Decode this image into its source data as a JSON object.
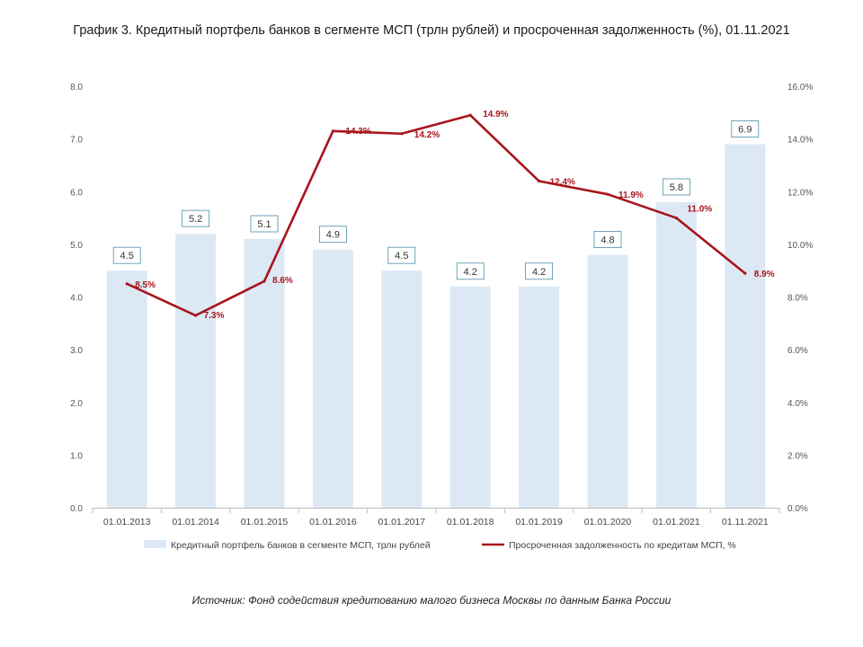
{
  "title": "График 3. Кредитный портфель банков в сегменте МСП (трлн рублей) и просроченная задолженность (%), 01.11.2021",
  "source": "Источник: Фонд содействия кредитованию малого бизнеса Москвы по данным Банка России",
  "chart_data": {
    "type": "bar",
    "categories": [
      "01.01.2013",
      "01.01.2014",
      "01.01.2015",
      "01.01.2016",
      "01.01.2017",
      "01.01.2018",
      "01.01.2019",
      "01.01.2020",
      "01.01.2021",
      "01.11.2021"
    ],
    "series": [
      {
        "name": "Кредитный портфель банков в сегменте МСП, трлн рублей",
        "type": "bar",
        "axis": "left",
        "color": "#dce9f5",
        "values": [
          4.5,
          5.2,
          5.1,
          4.9,
          4.5,
          4.2,
          4.2,
          4.8,
          5.8,
          6.9
        ],
        "labels": [
          "4.5",
          "5.2",
          "5.1",
          "4.9",
          "4.5",
          "4.2",
          "4.2",
          "4.8",
          "5.8",
          "6.9"
        ]
      },
      {
        "name": "Просроченная задолженность по кредитам МСП, %",
        "type": "line",
        "axis": "right",
        "color": "#a8141c",
        "values": [
          8.5,
          7.3,
          8.6,
          14.3,
          14.2,
          14.9,
          12.4,
          11.9,
          11.0,
          8.9
        ],
        "labels": [
          "8.5%",
          "7.3%",
          "8.6%",
          "14.3%",
          "14.2%",
          "14.9%",
          "12.4%",
          "11.9%",
          "11.0%",
          "8.9%"
        ]
      }
    ],
    "y_left": {
      "ylim": [
        0,
        8
      ],
      "ticks": [
        "0.0",
        "1.0",
        "2.0",
        "3.0",
        "4.0",
        "5.0",
        "6.0",
        "7.0",
        "8.0"
      ]
    },
    "y_right": {
      "ylim": [
        0,
        16
      ],
      "ticks": [
        "0.0%",
        "2.0%",
        "4.0%",
        "6.0%",
        "8.0%",
        "10.0%",
        "12.0%",
        "14.0%",
        "16.0%"
      ]
    },
    "grid": false,
    "legend_position": "bottom"
  }
}
